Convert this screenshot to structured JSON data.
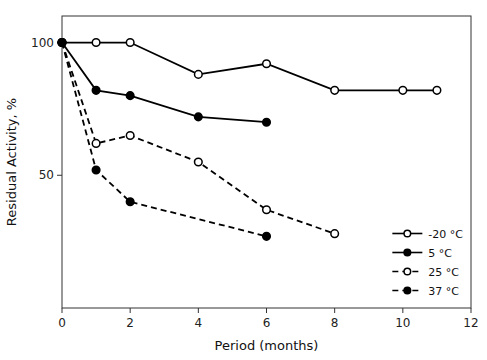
{
  "chart_data": {
    "type": "line",
    "xlabel": "Period (months)",
    "ylabel": "Residual Activity, %",
    "series": [
      {
        "name": "-20 °C",
        "color": "#000000",
        "line_style": "solid",
        "marker": "open-circle",
        "x": [
          0,
          1,
          2,
          4,
          6,
          8,
          10,
          11
        ],
        "values": [
          100,
          100,
          100,
          88,
          92,
          82,
          82,
          82
        ]
      },
      {
        "name": "5 °C",
        "color": "#000000",
        "line_style": "solid",
        "marker": "circle",
        "x": [
          0,
          1,
          2,
          4,
          6
        ],
        "values": [
          100,
          82,
          80,
          72,
          70
        ]
      },
      {
        "name": "25 °C",
        "color": "#000000",
        "line_style": "dashed",
        "marker": "open-circle",
        "x": [
          0,
          1,
          2,
          4,
          6,
          8
        ],
        "values": [
          100,
          62,
          65,
          55,
          37,
          28
        ]
      },
      {
        "name": "37 °C",
        "color": "#000000",
        "line_style": "dashed",
        "marker": "circle",
        "x": [
          0,
          1,
          2,
          6
        ],
        "values": [
          100,
          52,
          40,
          27
        ]
      }
    ],
    "xlim": [
      0,
      12
    ],
    "ylim": [
      0,
      110
    ],
    "xticks": [
      0,
      2,
      4,
      6,
      8,
      10,
      12
    ],
    "yticks": [
      50,
      100
    ],
    "grid": false,
    "legend": "lower right"
  }
}
